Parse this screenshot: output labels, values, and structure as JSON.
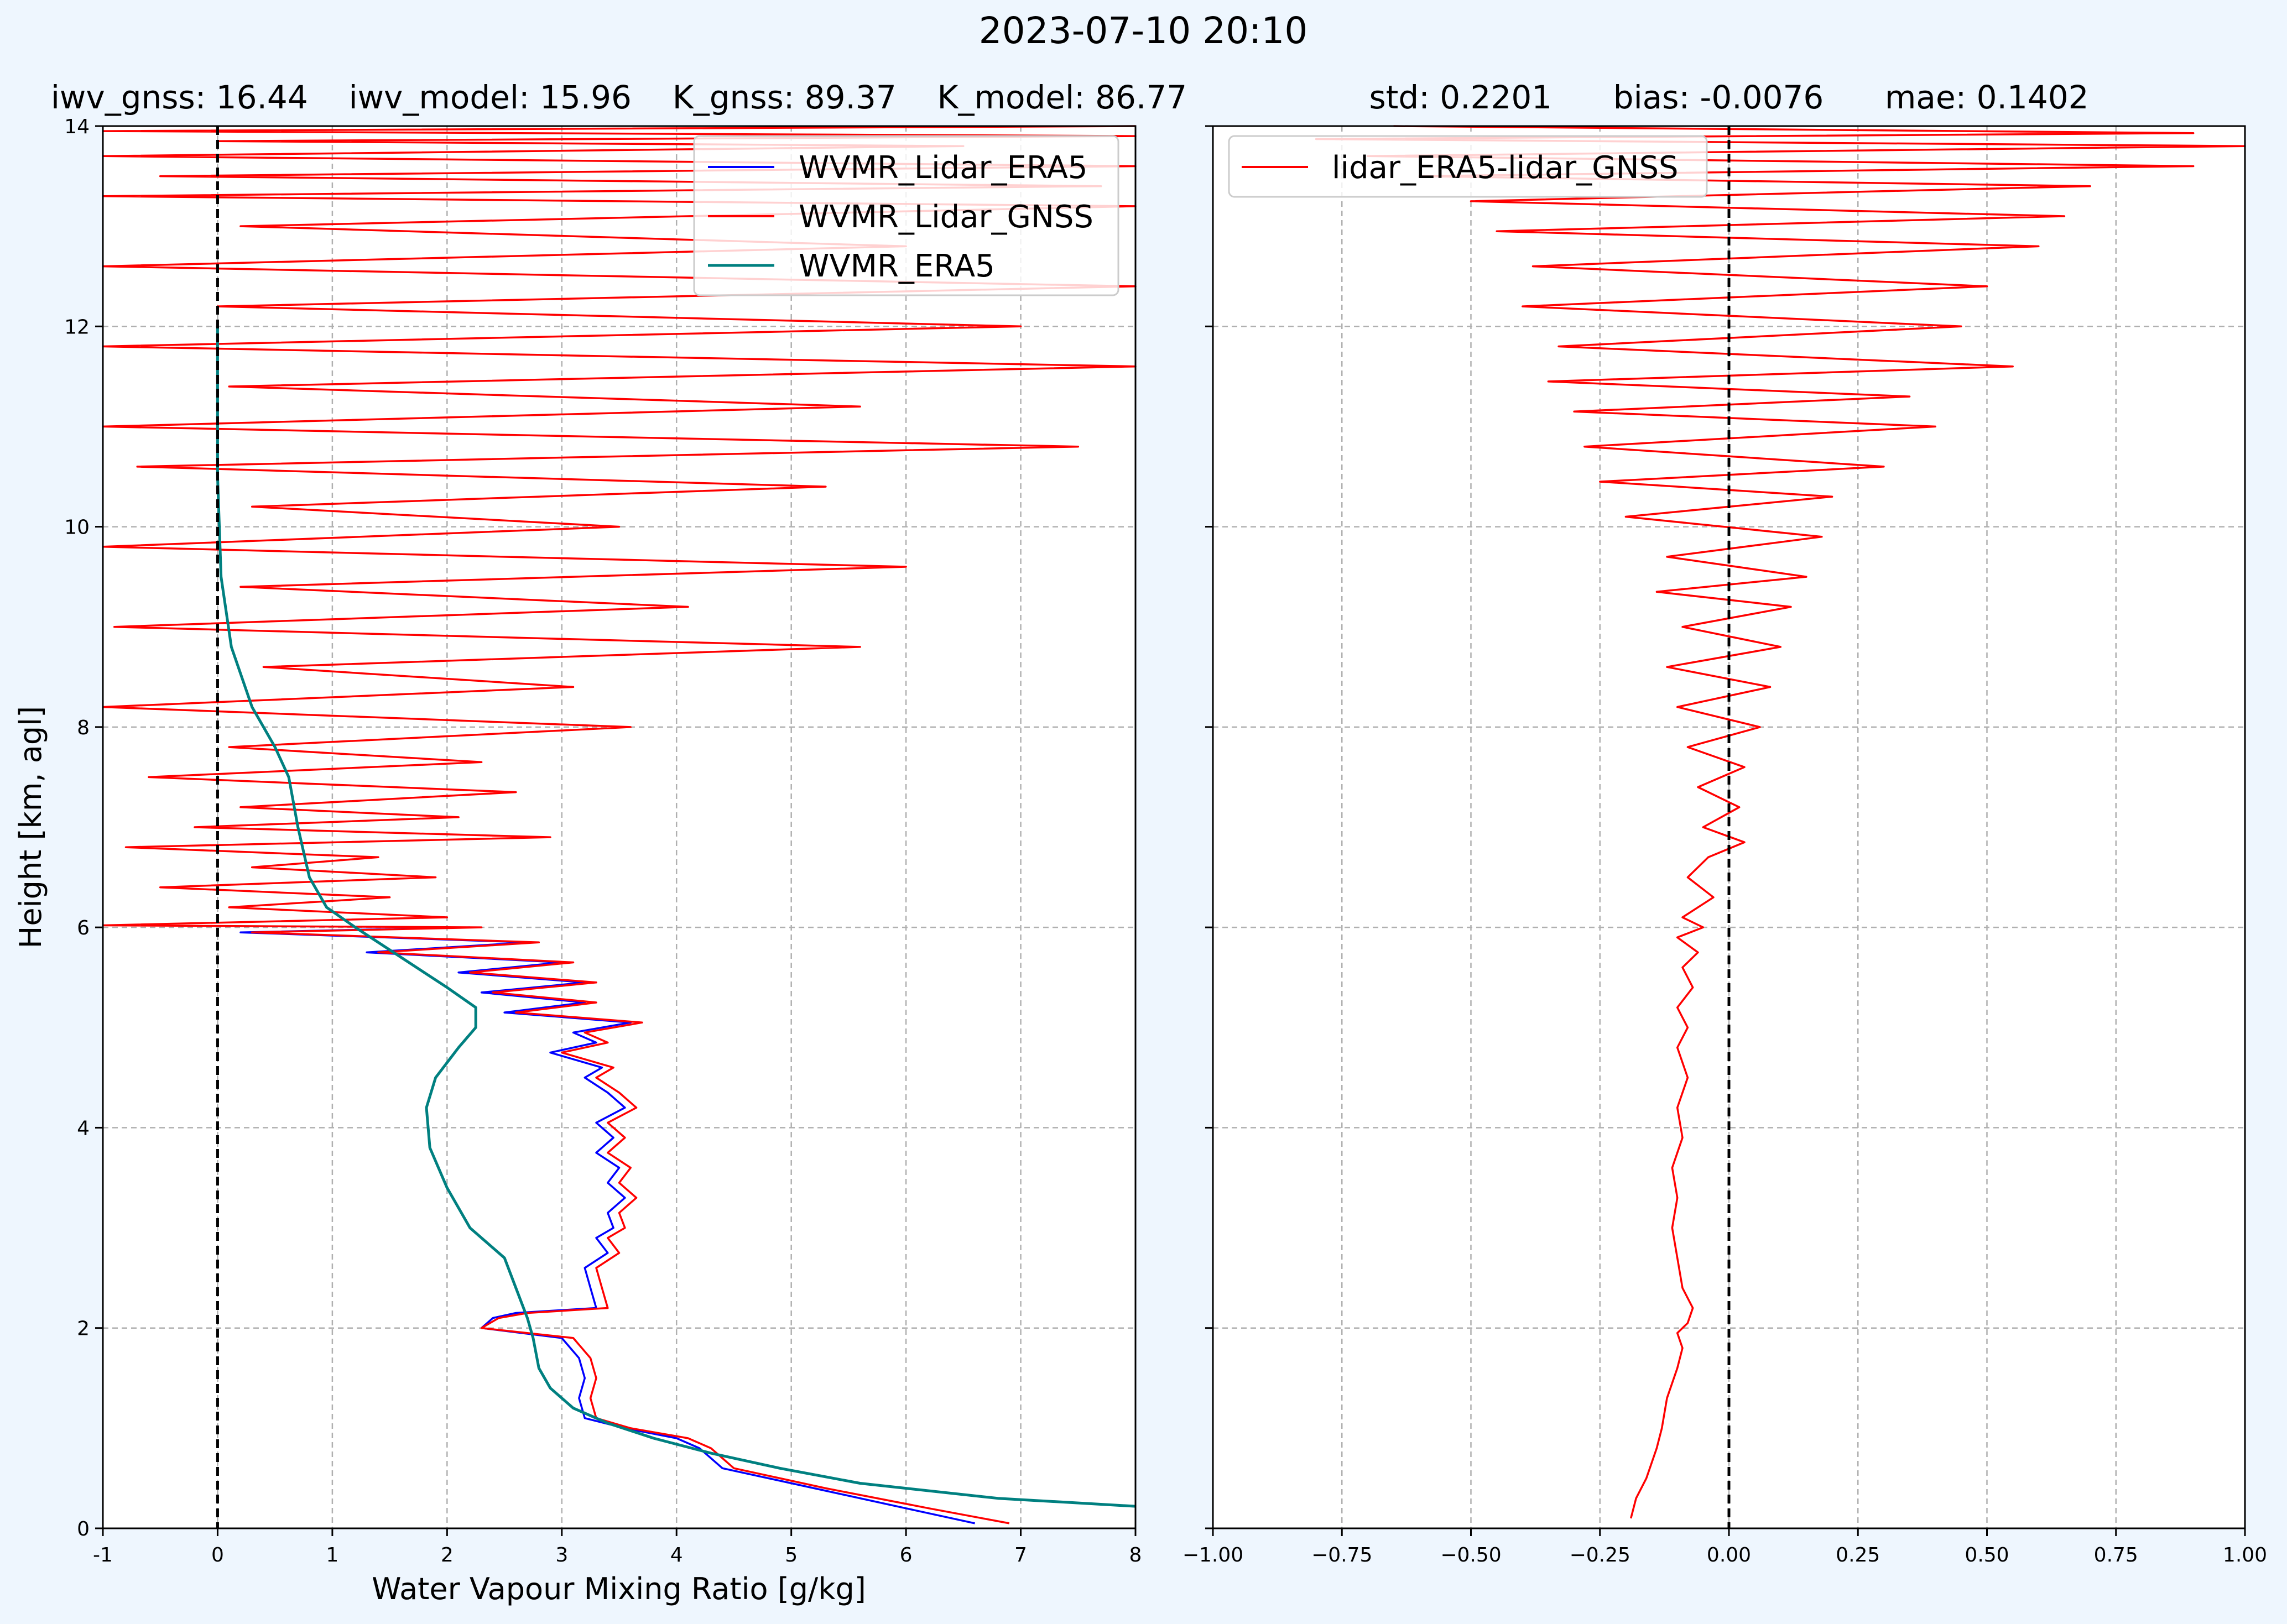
{
  "figure": {
    "suptitle": "2023-07-10 20:10",
    "background": "#eef6fe"
  },
  "chart_data": [
    {
      "type": "line",
      "title": "iwv_gnss: 16.44    iwv_model: 15.96    K_gnss: 89.37    K_model: 86.77",
      "xlabel": "Water Vapour Mixing Ratio [g/kg]",
      "ylabel": "Height [km, agl]",
      "xlim": [
        -1,
        8
      ],
      "ylim": [
        0,
        14
      ],
      "xticks": [
        -1,
        0,
        1,
        2,
        3,
        4,
        5,
        6,
        7,
        8
      ],
      "yticks": [
        0,
        2,
        4,
        6,
        8,
        10,
        12,
        14
      ],
      "grid": true,
      "legend_position": "top-right",
      "reference_line_x": 0,
      "series": [
        {
          "name": "WVMR_Lidar_ERA5",
          "color": "#0000ff",
          "x": [
            6.6,
            6.0,
            5.2,
            4.4,
            4.2,
            4.0,
            3.55,
            3.2,
            3.15,
            3.2,
            3.15,
            3.0,
            2.3,
            2.4,
            2.6,
            3.3,
            3.25,
            3.2,
            3.4,
            3.3,
            3.45,
            3.4,
            3.55,
            3.4,
            3.5,
            3.3,
            3.45,
            3.3,
            3.55,
            3.4,
            3.2,
            3.35,
            2.9,
            3.3,
            3.1,
            3.6,
            2.5,
            3.2,
            2.3,
            3.2,
            2.1,
            3.0,
            1.3,
            2.7,
            0.2,
            2.2
          ],
          "y": [
            0.05,
            0.2,
            0.4,
            0.6,
            0.8,
            0.9,
            1.0,
            1.1,
            1.3,
            1.5,
            1.7,
            1.9,
            2.0,
            2.1,
            2.15,
            2.2,
            2.4,
            2.6,
            2.75,
            2.9,
            3.0,
            3.15,
            3.3,
            3.45,
            3.6,
            3.75,
            3.9,
            4.05,
            4.2,
            4.35,
            4.5,
            4.6,
            4.75,
            4.85,
            4.95,
            5.05,
            5.15,
            5.25,
            5.35,
            5.45,
            5.55,
            5.65,
            5.75,
            5.85,
            5.95,
            6.0
          ]
        },
        {
          "name": "WVMR_Lidar_GNSS",
          "color": "#ff0000",
          "x": [
            6.9,
            6.2,
            5.3,
            4.5,
            4.3,
            4.1,
            3.6,
            3.3,
            3.25,
            3.3,
            3.25,
            3.1,
            2.3,
            2.45,
            2.7,
            3.4,
            3.35,
            3.3,
            3.5,
            3.4,
            3.55,
            3.5,
            3.65,
            3.5,
            3.6,
            3.4,
            3.55,
            3.4,
            3.65,
            3.5,
            3.3,
            3.45,
            3.0,
            3.4,
            3.2,
            3.7,
            2.6,
            3.3,
            2.4,
            3.3,
            2.2,
            3.1,
            1.4,
            2.8,
            0.3,
            2.3,
            -1.0,
            2.0,
            0.1,
            1.5,
            -0.5,
            1.9,
            0.3,
            1.4,
            -0.8,
            2.9,
            -0.2,
            2.1,
            0.2,
            2.6,
            -0.6,
            2.3,
            0.1,
            3.6,
            -1.0,
            3.1,
            0.4,
            5.6,
            -0.9,
            4.1,
            0.2,
            6.0,
            -1.0,
            3.5,
            0.3,
            5.3,
            -0.7,
            7.5,
            -1.0,
            5.6,
            0.1,
            8.0,
            -1.0,
            7.0,
            0.0,
            8.0,
            -1.0,
            6.0,
            0.2,
            8.0,
            -1.0,
            7.7,
            -0.5,
            8.0,
            -1.0,
            6.5,
            0.0,
            8.0,
            -1.0,
            8.0
          ],
          "y": [
            0.05,
            0.2,
            0.4,
            0.6,
            0.8,
            0.9,
            1.0,
            1.1,
            1.3,
            1.5,
            1.7,
            1.9,
            2.0,
            2.1,
            2.15,
            2.2,
            2.4,
            2.6,
            2.75,
            2.9,
            3.0,
            3.15,
            3.3,
            3.45,
            3.6,
            3.75,
            3.9,
            4.05,
            4.2,
            4.35,
            4.5,
            4.6,
            4.75,
            4.85,
            4.95,
            5.05,
            5.15,
            5.25,
            5.35,
            5.45,
            5.55,
            5.65,
            5.75,
            5.85,
            5.95,
            6.0,
            6.02,
            6.1,
            6.2,
            6.3,
            6.4,
            6.5,
            6.6,
            6.7,
            6.8,
            6.9,
            7.0,
            7.1,
            7.2,
            7.35,
            7.5,
            7.65,
            7.8,
            8.0,
            8.2,
            8.4,
            8.6,
            8.8,
            9.0,
            9.2,
            9.4,
            9.6,
            9.8,
            10.0,
            10.2,
            10.4,
            10.6,
            10.8,
            11.0,
            11.2,
            11.4,
            11.6,
            11.8,
            12.0,
            12.2,
            12.4,
            12.6,
            12.8,
            13.0,
            13.2,
            13.3,
            13.4,
            13.5,
            13.6,
            13.7,
            13.8,
            13.85,
            13.9,
            13.95,
            14.0
          ]
        },
        {
          "name": "WVMR_ERA5",
          "color": "#008080",
          "x": [
            8.0,
            6.8,
            5.6,
            4.9,
            4.3,
            3.8,
            3.4,
            3.1,
            2.9,
            2.8,
            2.75,
            2.7,
            2.6,
            2.5,
            2.2,
            2.0,
            1.85,
            1.82,
            1.9,
            2.1,
            2.25,
            2.25,
            2.0,
            1.6,
            1.2,
            0.95,
            0.8,
            0.7,
            0.62,
            0.5,
            0.3,
            0.12,
            0.03,
            0.0,
            0.0
          ],
          "y": [
            0.22,
            0.3,
            0.45,
            0.6,
            0.75,
            0.9,
            1.05,
            1.2,
            1.4,
            1.6,
            1.9,
            2.1,
            2.4,
            2.7,
            3.0,
            3.4,
            3.8,
            4.2,
            4.5,
            4.8,
            5.0,
            5.2,
            5.4,
            5.7,
            6.0,
            6.2,
            6.5,
            7.0,
            7.5,
            7.8,
            8.2,
            8.8,
            9.5,
            10.5,
            12.0
          ]
        }
      ]
    },
    {
      "type": "line",
      "title": "std: 0.2201      bias: -0.0076      mae: 0.1402",
      "xlabel": "",
      "ylabel": "",
      "xlim": [
        -1.0,
        1.0
      ],
      "ylim": [
        0,
        14
      ],
      "xticks": [
        "−1.00",
        "−0.75",
        "−0.50",
        "−0.25",
        "0.00",
        "0.25",
        "0.50",
        "0.75",
        "1.00"
      ],
      "grid": true,
      "legend_position": "top-left",
      "reference_line_x": 0,
      "series": [
        {
          "name": "lidar_ERA5-lidar_GNSS",
          "color": "#ff0000",
          "x": [
            -0.19,
            -0.18,
            -0.16,
            -0.14,
            -0.13,
            -0.12,
            -0.1,
            -0.09,
            -0.1,
            -0.08,
            -0.07,
            -0.09,
            -0.1,
            -0.11,
            -0.1,
            -0.11,
            -0.09,
            -0.1,
            -0.08,
            -0.1,
            -0.08,
            -0.1,
            -0.07,
            -0.09,
            -0.06,
            -0.1,
            -0.05,
            -0.09,
            -0.03,
            -0.08,
            -0.04,
            0.03,
            -0.05,
            0.02,
            -0.06,
            0.03,
            -0.08,
            0.06,
            -0.1,
            0.08,
            -0.12,
            0.1,
            -0.09,
            0.12,
            -0.14,
            0.15,
            -0.12,
            0.18,
            -0.2,
            0.2,
            -0.25,
            0.3,
            -0.28,
            0.4,
            -0.3,
            0.35,
            -0.35,
            0.55,
            -0.33,
            0.45,
            -0.4,
            0.5,
            -0.38,
            0.6,
            -0.45,
            0.65,
            -0.5,
            0.7,
            -0.6,
            0.9,
            -0.7,
            1.0,
            -0.8,
            0.9,
            -0.65
          ],
          "y": [
            0.1,
            0.3,
            0.5,
            0.8,
            1.0,
            1.3,
            1.6,
            1.8,
            1.95,
            2.05,
            2.2,
            2.4,
            2.7,
            3.0,
            3.3,
            3.6,
            3.9,
            4.2,
            4.5,
            4.8,
            5.0,
            5.2,
            5.4,
            5.6,
            5.75,
            5.9,
            6.0,
            6.1,
            6.3,
            6.5,
            6.7,
            6.85,
            7.0,
            7.2,
            7.4,
            7.6,
            7.8,
            8.0,
            8.2,
            8.4,
            8.6,
            8.8,
            9.0,
            9.2,
            9.35,
            9.5,
            9.7,
            9.9,
            10.1,
            10.3,
            10.45,
            10.6,
            10.8,
            11.0,
            11.15,
            11.3,
            11.45,
            11.6,
            11.8,
            12.0,
            12.2,
            12.4,
            12.6,
            12.8,
            12.95,
            13.1,
            13.25,
            13.4,
            13.5,
            13.6,
            13.7,
            13.8,
            13.87,
            13.93,
            14.0
          ]
        }
      ]
    }
  ]
}
